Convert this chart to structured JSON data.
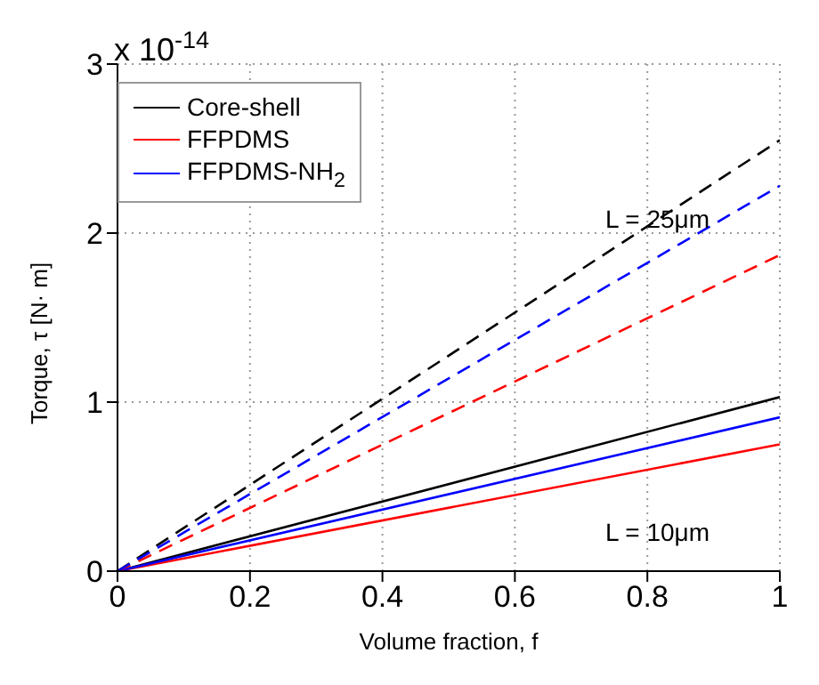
{
  "chart_data": {
    "type": "line",
    "xlabel": "Volume fraction, f",
    "ylabel": "Torque, τ [N· m]",
    "xlim": [
      0,
      1
    ],
    "xticks": [
      0,
      0.2,
      0.4,
      0.6,
      0.8,
      1
    ],
    "ylim": [
      0,
      3
    ],
    "yticks": [
      0,
      1,
      2,
      3
    ],
    "x": [
      0,
      1
    ],
    "grid": true,
    "legend": "top left",
    "marker": "none",
    "series": [
      {
        "name": "Core-shell",
        "color": "#000000",
        "values": [
          0,
          1.03
        ],
        "line_style": "solid"
      },
      {
        "name": "FFPDMS",
        "color": "#ff0000",
        "values": [
          0,
          0.75
        ],
        "line_style": "solid"
      },
      {
        "name": "FFPDMS-NH$_{2}$",
        "color": "#0000ff",
        "values": [
          0,
          0.91
        ],
        "line_style": "solid"
      },
      {
        "color": "#000000",
        "values": [
          0,
          2.55
        ],
        "line_style": "dashed"
      },
      {
        "color": "#ff0000",
        "values": [
          0,
          1.87
        ],
        "line_style": "dashed"
      },
      {
        "color": "#0000ff",
        "values": [
          0,
          2.28
        ],
        "line_style": "dashed"
      }
    ],
    "annotations": [
      "x 10$^{-14}$",
      "L = 25μm",
      "L = 10μm"
    ]
  }
}
